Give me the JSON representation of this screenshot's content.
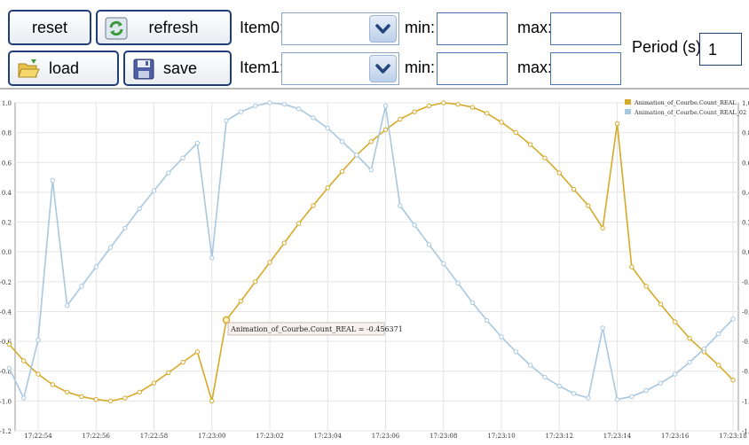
{
  "toolbar": {
    "reset_label": "reset",
    "refresh_label": "refresh",
    "load_label": "load",
    "save_label": "save",
    "item0_label": "Item0:",
    "item1_label": "Item1:",
    "min_label": "min:",
    "max_label": "max:",
    "item0_value": "",
    "item1_value": "",
    "item0_min": "",
    "item0_max": "",
    "item1_min": "",
    "item1_max": "",
    "period_label": "Period (s):",
    "period_value": "1",
    "icons": [
      "refresh-icon",
      "folder-open-icon",
      "floppy-disk-icon",
      "chevron-down-icon"
    ]
  },
  "tooltip": {
    "text": "Animation_of_Courbe.Count_REAL = -0.456371",
    "series": "Animation_of_Courbe.Count_REAL",
    "x": "17:23:00.5",
    "y": -0.456371
  },
  "chart_data": {
    "type": "line",
    "title": "",
    "xlabel": "",
    "ylabel": "",
    "ylim": [
      -1.2,
      1.0
    ],
    "yticks": [
      "1.0",
      "0.8",
      "0.6",
      "0.4",
      "0.2",
      "0.0",
      "-0.2",
      "-0.4",
      "-0.6",
      "-0.8",
      "-1.0",
      "-1.2"
    ],
    "xticks": [
      "17:22:54",
      "17:22:56",
      "17:22:58",
      "17:23:00",
      "17:23:02",
      "17:23:04",
      "17:23:06",
      "17:23:08",
      "17:23:10",
      "17:23:12",
      "17:23:14",
      "17:23:16",
      "17:23:18"
    ],
    "grid": true,
    "legend_position": "top-right",
    "colors": {
      "Animation_of_Courbe.Count_REAL": "#d6a928",
      "Animation_of_Courbe.Count_REAL_02": "#a8c8df"
    },
    "series": [
      {
        "name": "Animation_of_Courbe.Count_REAL",
        "x": [
          "17:22:53.0",
          "17:22:53.5",
          "17:22:54.0",
          "17:22:54.5",
          "17:22:55.0",
          "17:22:55.5",
          "17:22:56.0",
          "17:22:56.5",
          "17:22:57.0",
          "17:22:57.5",
          "17:22:58.0",
          "17:22:58.5",
          "17:22:59.0",
          "17:22:59.5",
          "17:23:00.0",
          "17:23:00.5",
          "17:23:01.0",
          "17:23:01.5",
          "17:23:02.0",
          "17:23:02.5",
          "17:23:03.0",
          "17:23:03.5",
          "17:23:04.0",
          "17:23:04.5",
          "17:23:05.0",
          "17:23:05.5",
          "17:23:06.0",
          "17:23:06.5",
          "17:23:07.0",
          "17:23:07.5",
          "17:23:08.0",
          "17:23:08.5",
          "17:23:09.0",
          "17:23:09.5",
          "17:23:10.0",
          "17:23:10.5",
          "17:23:11.0",
          "17:23:11.5",
          "17:23:12.0",
          "17:23:12.5",
          "17:23:13.0",
          "17:23:13.5",
          "17:23:14.0",
          "17:23:14.5",
          "17:23:15.0",
          "17:23:15.5",
          "17:23:16.0",
          "17:23:16.5",
          "17:23:17.0",
          "17:23:17.5",
          "17:23:18.0"
        ],
        "y": [
          -0.62,
          -0.73,
          -0.82,
          -0.89,
          -0.94,
          -0.97,
          -0.99,
          -1.0,
          -0.98,
          -0.94,
          -0.88,
          -0.81,
          -0.74,
          -0.67,
          -1.0,
          -0.456,
          -0.33,
          -0.2,
          -0.07,
          0.06,
          0.19,
          0.31,
          0.43,
          0.54,
          0.65,
          0.74,
          0.82,
          0.89,
          0.94,
          0.98,
          1.0,
          0.99,
          0.97,
          0.93,
          0.87,
          0.8,
          0.72,
          0.63,
          0.53,
          0.42,
          0.31,
          0.16,
          0.86,
          -0.1,
          -0.23,
          -0.35,
          -0.47,
          -0.58,
          -0.67,
          -0.76,
          -0.86
        ]
      },
      {
        "name": "Animation_of_Courbe.Count_REAL_02",
        "x": [
          "17:22:53.0",
          "17:22:53.5",
          "17:22:54.0",
          "17:22:54.5",
          "17:22:55.0",
          "17:22:55.5",
          "17:22:56.0",
          "17:22:56.5",
          "17:22:57.0",
          "17:22:57.5",
          "17:22:58.0",
          "17:22:58.5",
          "17:22:59.0",
          "17:22:59.5",
          "17:23:00.0",
          "17:23:00.5",
          "17:23:01.0",
          "17:23:01.5",
          "17:23:02.0",
          "17:23:02.5",
          "17:23:03.0",
          "17:23:03.5",
          "17:23:04.0",
          "17:23:04.5",
          "17:23:05.0",
          "17:23:05.5",
          "17:23:06.0",
          "17:23:06.5",
          "17:23:07.0",
          "17:23:07.5",
          "17:23:08.0",
          "17:23:08.5",
          "17:23:09.0",
          "17:23:09.5",
          "17:23:10.0",
          "17:23:10.5",
          "17:23:11.0",
          "17:23:11.5",
          "17:23:12.0",
          "17:23:12.5",
          "17:23:13.0",
          "17:23:13.5",
          "17:23:14.0",
          "17:23:14.5",
          "17:23:15.0",
          "17:23:15.5",
          "17:23:16.0",
          "17:23:16.5",
          "17:23:17.0",
          "17:23:17.5",
          "17:23:18.0"
        ],
        "y": [
          -0.78,
          -0.98,
          -0.59,
          0.48,
          -0.36,
          -0.23,
          -0.1,
          0.03,
          0.16,
          0.29,
          0.41,
          0.53,
          0.63,
          0.73,
          -0.04,
          0.88,
          0.94,
          0.98,
          1.0,
          0.99,
          0.96,
          0.9,
          0.83,
          0.74,
          0.65,
          0.55,
          0.98,
          0.31,
          0.18,
          0.05,
          -0.08,
          -0.21,
          -0.34,
          -0.46,
          -0.57,
          -0.67,
          -0.76,
          -0.84,
          -0.9,
          -0.95,
          -0.98,
          -0.51,
          -0.99,
          -0.97,
          -0.93,
          -0.88,
          -0.82,
          -0.74,
          -0.65,
          -0.55,
          -0.45
        ]
      }
    ]
  }
}
